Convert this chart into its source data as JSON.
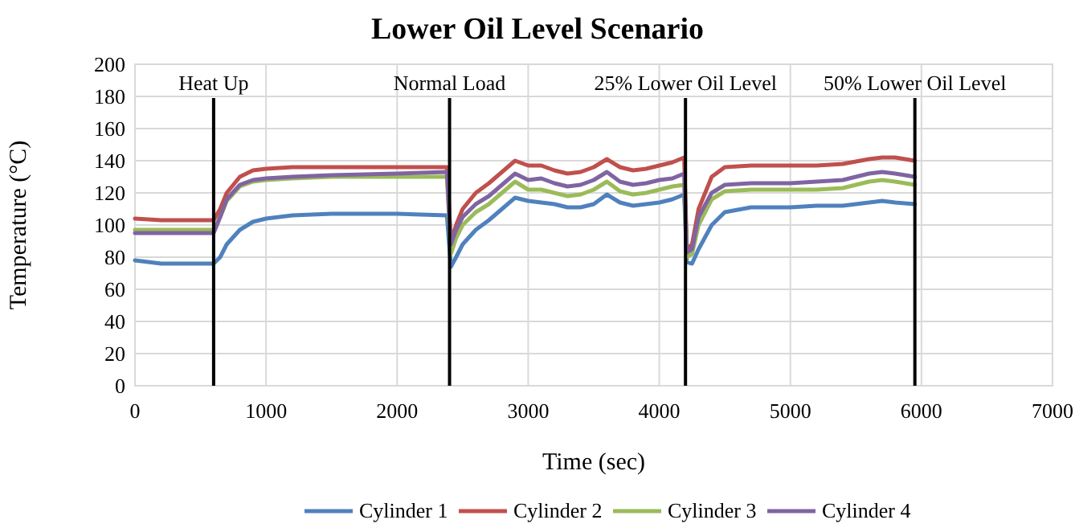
{
  "chart_data": {
    "type": "line",
    "title": "Lower Oil Level Scenario",
    "xlabel": "Time (sec)",
    "ylabel": "Temperature (°C)",
    "x": [
      0,
      200,
      400,
      600,
      650,
      700,
      800,
      900,
      1000,
      1200,
      1500,
      2000,
      2380,
      2410,
      2450,
      2500,
      2600,
      2700,
      2800,
      2900,
      3000,
      3100,
      3200,
      3300,
      3400,
      3500,
      3600,
      3700,
      3800,
      3900,
      4000,
      4100,
      4190,
      4210,
      4250,
      4300,
      4400,
      4500,
      4700,
      5000,
      5200,
      5400,
      5600,
      5700,
      5800,
      5950
    ],
    "series": [
      {
        "name": "Cylinder 1",
        "color": "#4f81bd",
        "values": [
          78,
          76,
          76,
          76,
          80,
          88,
          97,
          102,
          104,
          106,
          107,
          107,
          106,
          74,
          80,
          88,
          97,
          103,
          110,
          117,
          115,
          114,
          113,
          111,
          111,
          113,
          119,
          114,
          112,
          113,
          114,
          116,
          119,
          77,
          76,
          85,
          100,
          108,
          111,
          111,
          112,
          112,
          114,
          115,
          114,
          113
        ]
      },
      {
        "name": "Cylinder 2",
        "color": "#c0504d",
        "values": [
          104,
          103,
          103,
          103,
          110,
          120,
          130,
          134,
          135,
          136,
          136,
          136,
          136,
          90,
          100,
          110,
          120,
          126,
          133,
          140,
          137,
          137,
          134,
          132,
          133,
          136,
          141,
          136,
          134,
          135,
          137,
          139,
          142,
          85,
          88,
          110,
          130,
          136,
          137,
          137,
          137,
          138,
          141,
          142,
          142,
          140
        ]
      },
      {
        "name": "Cylinder 3",
        "color": "#9bbb59",
        "values": [
          97,
          97,
          97,
          97,
          105,
          115,
          124,
          127,
          128,
          129,
          130,
          130,
          130,
          82,
          92,
          100,
          108,
          113,
          120,
          127,
          122,
          122,
          120,
          118,
          119,
          122,
          127,
          121,
          119,
          120,
          122,
          124,
          125,
          80,
          82,
          100,
          116,
          121,
          122,
          122,
          122,
          123,
          127,
          128,
          127,
          125
        ]
      },
      {
        "name": "Cylinder 4",
        "color": "#8064a2",
        "values": [
          95,
          95,
          95,
          95,
          105,
          116,
          125,
          128,
          129,
          130,
          131,
          132,
          133,
          88,
          97,
          105,
          113,
          118,
          125,
          132,
          128,
          129,
          126,
          124,
          125,
          128,
          133,
          127,
          125,
          126,
          128,
          129,
          132,
          83,
          85,
          105,
          120,
          125,
          126,
          126,
          127,
          128,
          132,
          133,
          132,
          130
        ]
      }
    ],
    "xlim": [
      0,
      7000
    ],
    "xticks": [
      0,
      1000,
      2000,
      3000,
      4000,
      5000,
      6000,
      7000
    ],
    "ylim": [
      0,
      200
    ],
    "yticks": [
      0,
      20,
      40,
      60,
      80,
      100,
      120,
      140,
      160,
      180,
      200
    ],
    "grid": true,
    "legend": "bottom",
    "marker": "none",
    "line_style": "solid",
    "ref_lines": [
      {
        "axis": "x",
        "value": 600,
        "label": "Heat Up",
        "color": "#000000"
      },
      {
        "axis": "x",
        "value": 2400,
        "label": "Normal Load",
        "color": "#000000"
      },
      {
        "axis": "x",
        "value": 4200,
        "label": "25% Lower Oil Level",
        "color": "#000000"
      },
      {
        "axis": "x",
        "value": 5950,
        "label": "50% Lower Oil Level",
        "color": "#000000"
      }
    ]
  }
}
